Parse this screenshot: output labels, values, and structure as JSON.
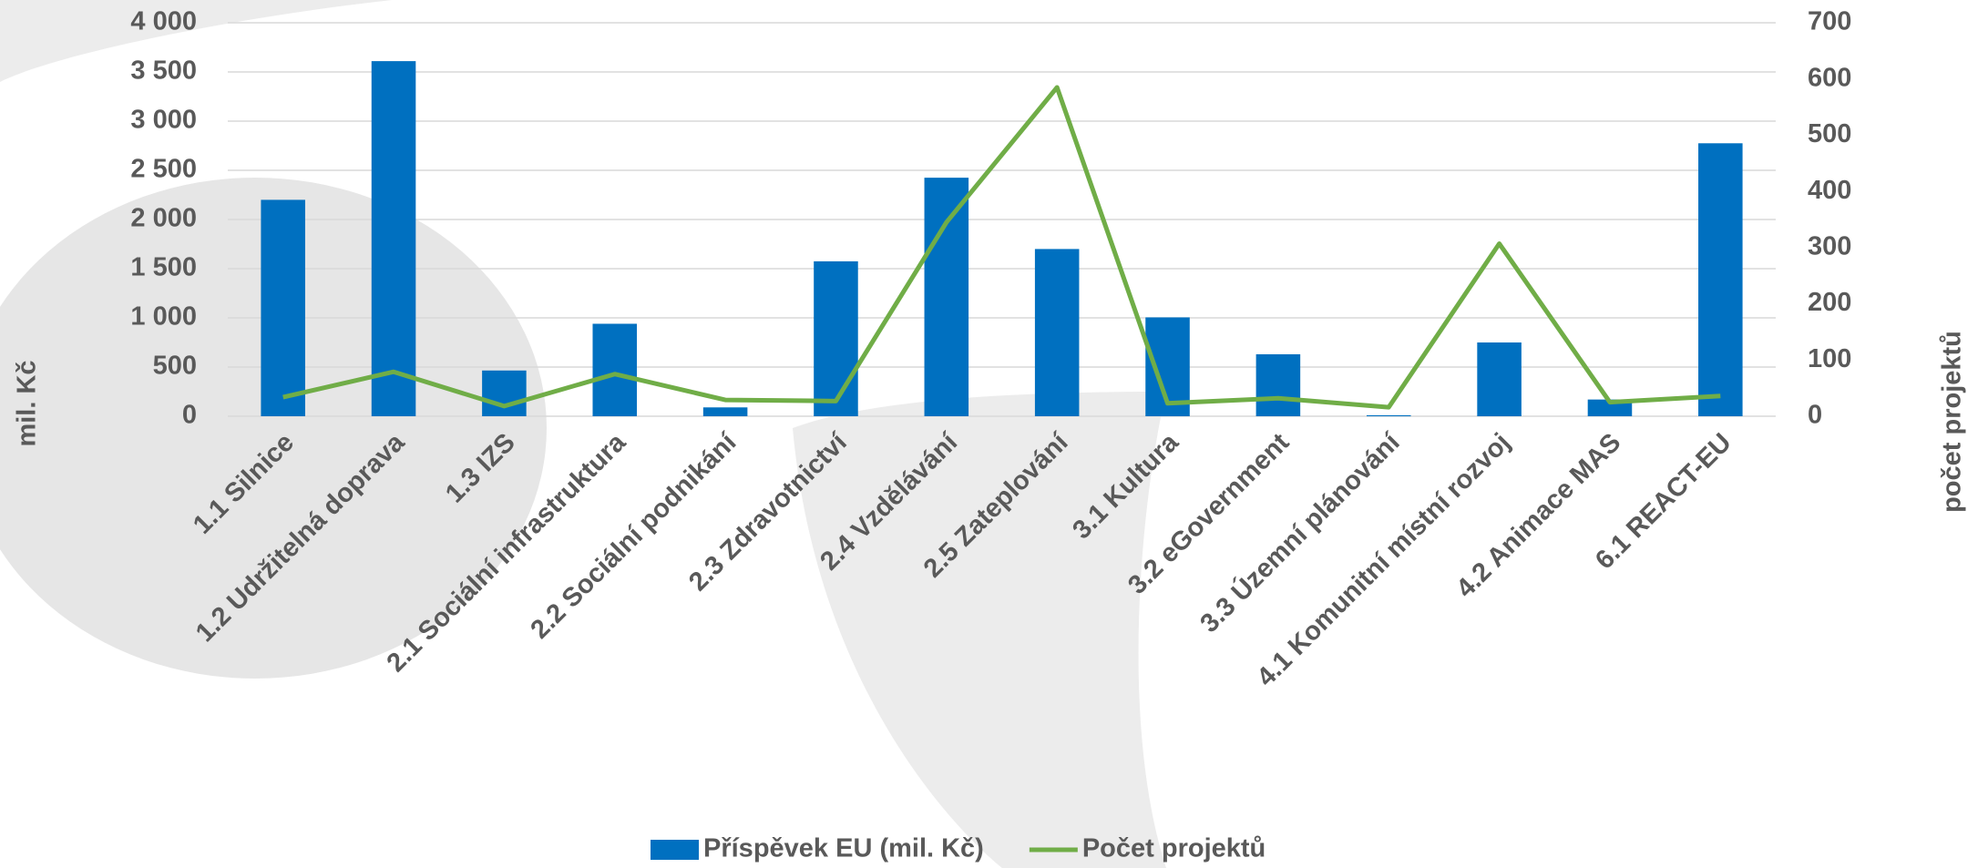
{
  "chart_data": {
    "type": "bar-line",
    "categories": [
      "1.1 Silnice",
      "1.2 Udržitelná doprava",
      "1.3 IZS",
      "2.1 Sociální infrastruktura",
      "2.2 Sociální podnikání",
      "2.3 Zdravotnictví",
      "2.4 Vzdělávání",
      "2.5 Zateplování",
      "3.1 Kultura",
      "3.2 eGovernment",
      "3.3 Územní plánování",
      "4.1 Komunitní místní rozvoj",
      "4.2 Animace MAS",
      "6.1 REACT-EU"
    ],
    "series": [
      {
        "name": "Příspěvek EU (mil. Kč)",
        "type": "bar",
        "color": "#0070c0",
        "values": [
          2200,
          3610,
          465,
          940,
          90,
          1575,
          2425,
          1700,
          1005,
          630,
          10,
          750,
          170,
          2775
        ]
      },
      {
        "name": "Počet projektů",
        "type": "line",
        "axis": "y2",
        "color": "#70ad47",
        "values": [
          34,
          79,
          18,
          75,
          29,
          27,
          345,
          585,
          23,
          32,
          16,
          307,
          25,
          36
        ]
      }
    ],
    "ylabel": "mil. Kč",
    "y2label": "počet projektů",
    "ylim": [
      0,
      4000
    ],
    "yticks": [
      0,
      500,
      {
        "value": 1000,
        "label": "1 000"
      },
      {
        "value": 1500,
        "label": "1 500"
      },
      {
        "value": 2000,
        "label": "2 000"
      },
      {
        "value": 2500,
        "label": "2 500"
      },
      {
        "value": 3000,
        "label": "3 000"
      },
      {
        "value": 3500,
        "label": "3 500"
      },
      {
        "value": 4000,
        "label": "4 000"
      }
    ],
    "y2lim": [
      0,
      700
    ],
    "y2ticks": [
      0,
      100,
      200,
      300,
      400,
      500,
      600,
      700
    ],
    "grid": true,
    "legend": "bottom"
  }
}
